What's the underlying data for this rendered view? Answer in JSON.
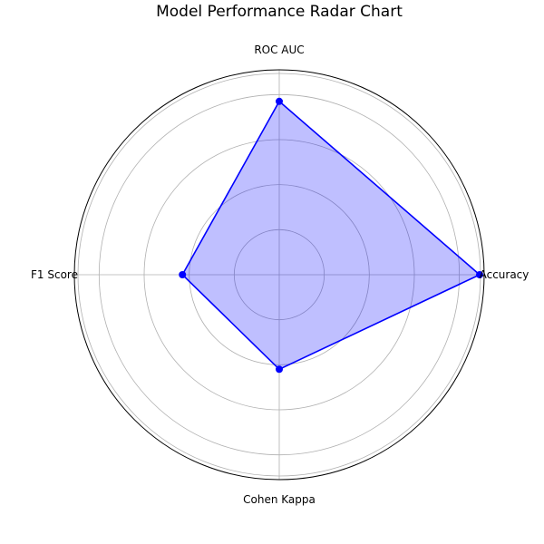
{
  "chart_data": {
    "type": "radar",
    "title": "Model Performance Radar Chart",
    "axes": [
      "Accuracy",
      "ROC AUC",
      "F1 Score",
      "Cohen Kappa"
    ],
    "series": [
      {
        "values": [
          0.89,
          0.77,
          0.43,
          0.42
        ],
        "color": "#0000ff"
      }
    ],
    "rlim": [
      0,
      0.91
    ],
    "rgrid": [
      0.2,
      0.4,
      0.6,
      0.8
    ],
    "grid": true,
    "fill_color": "#0000ff",
    "fill_opacity": 0.25
  }
}
